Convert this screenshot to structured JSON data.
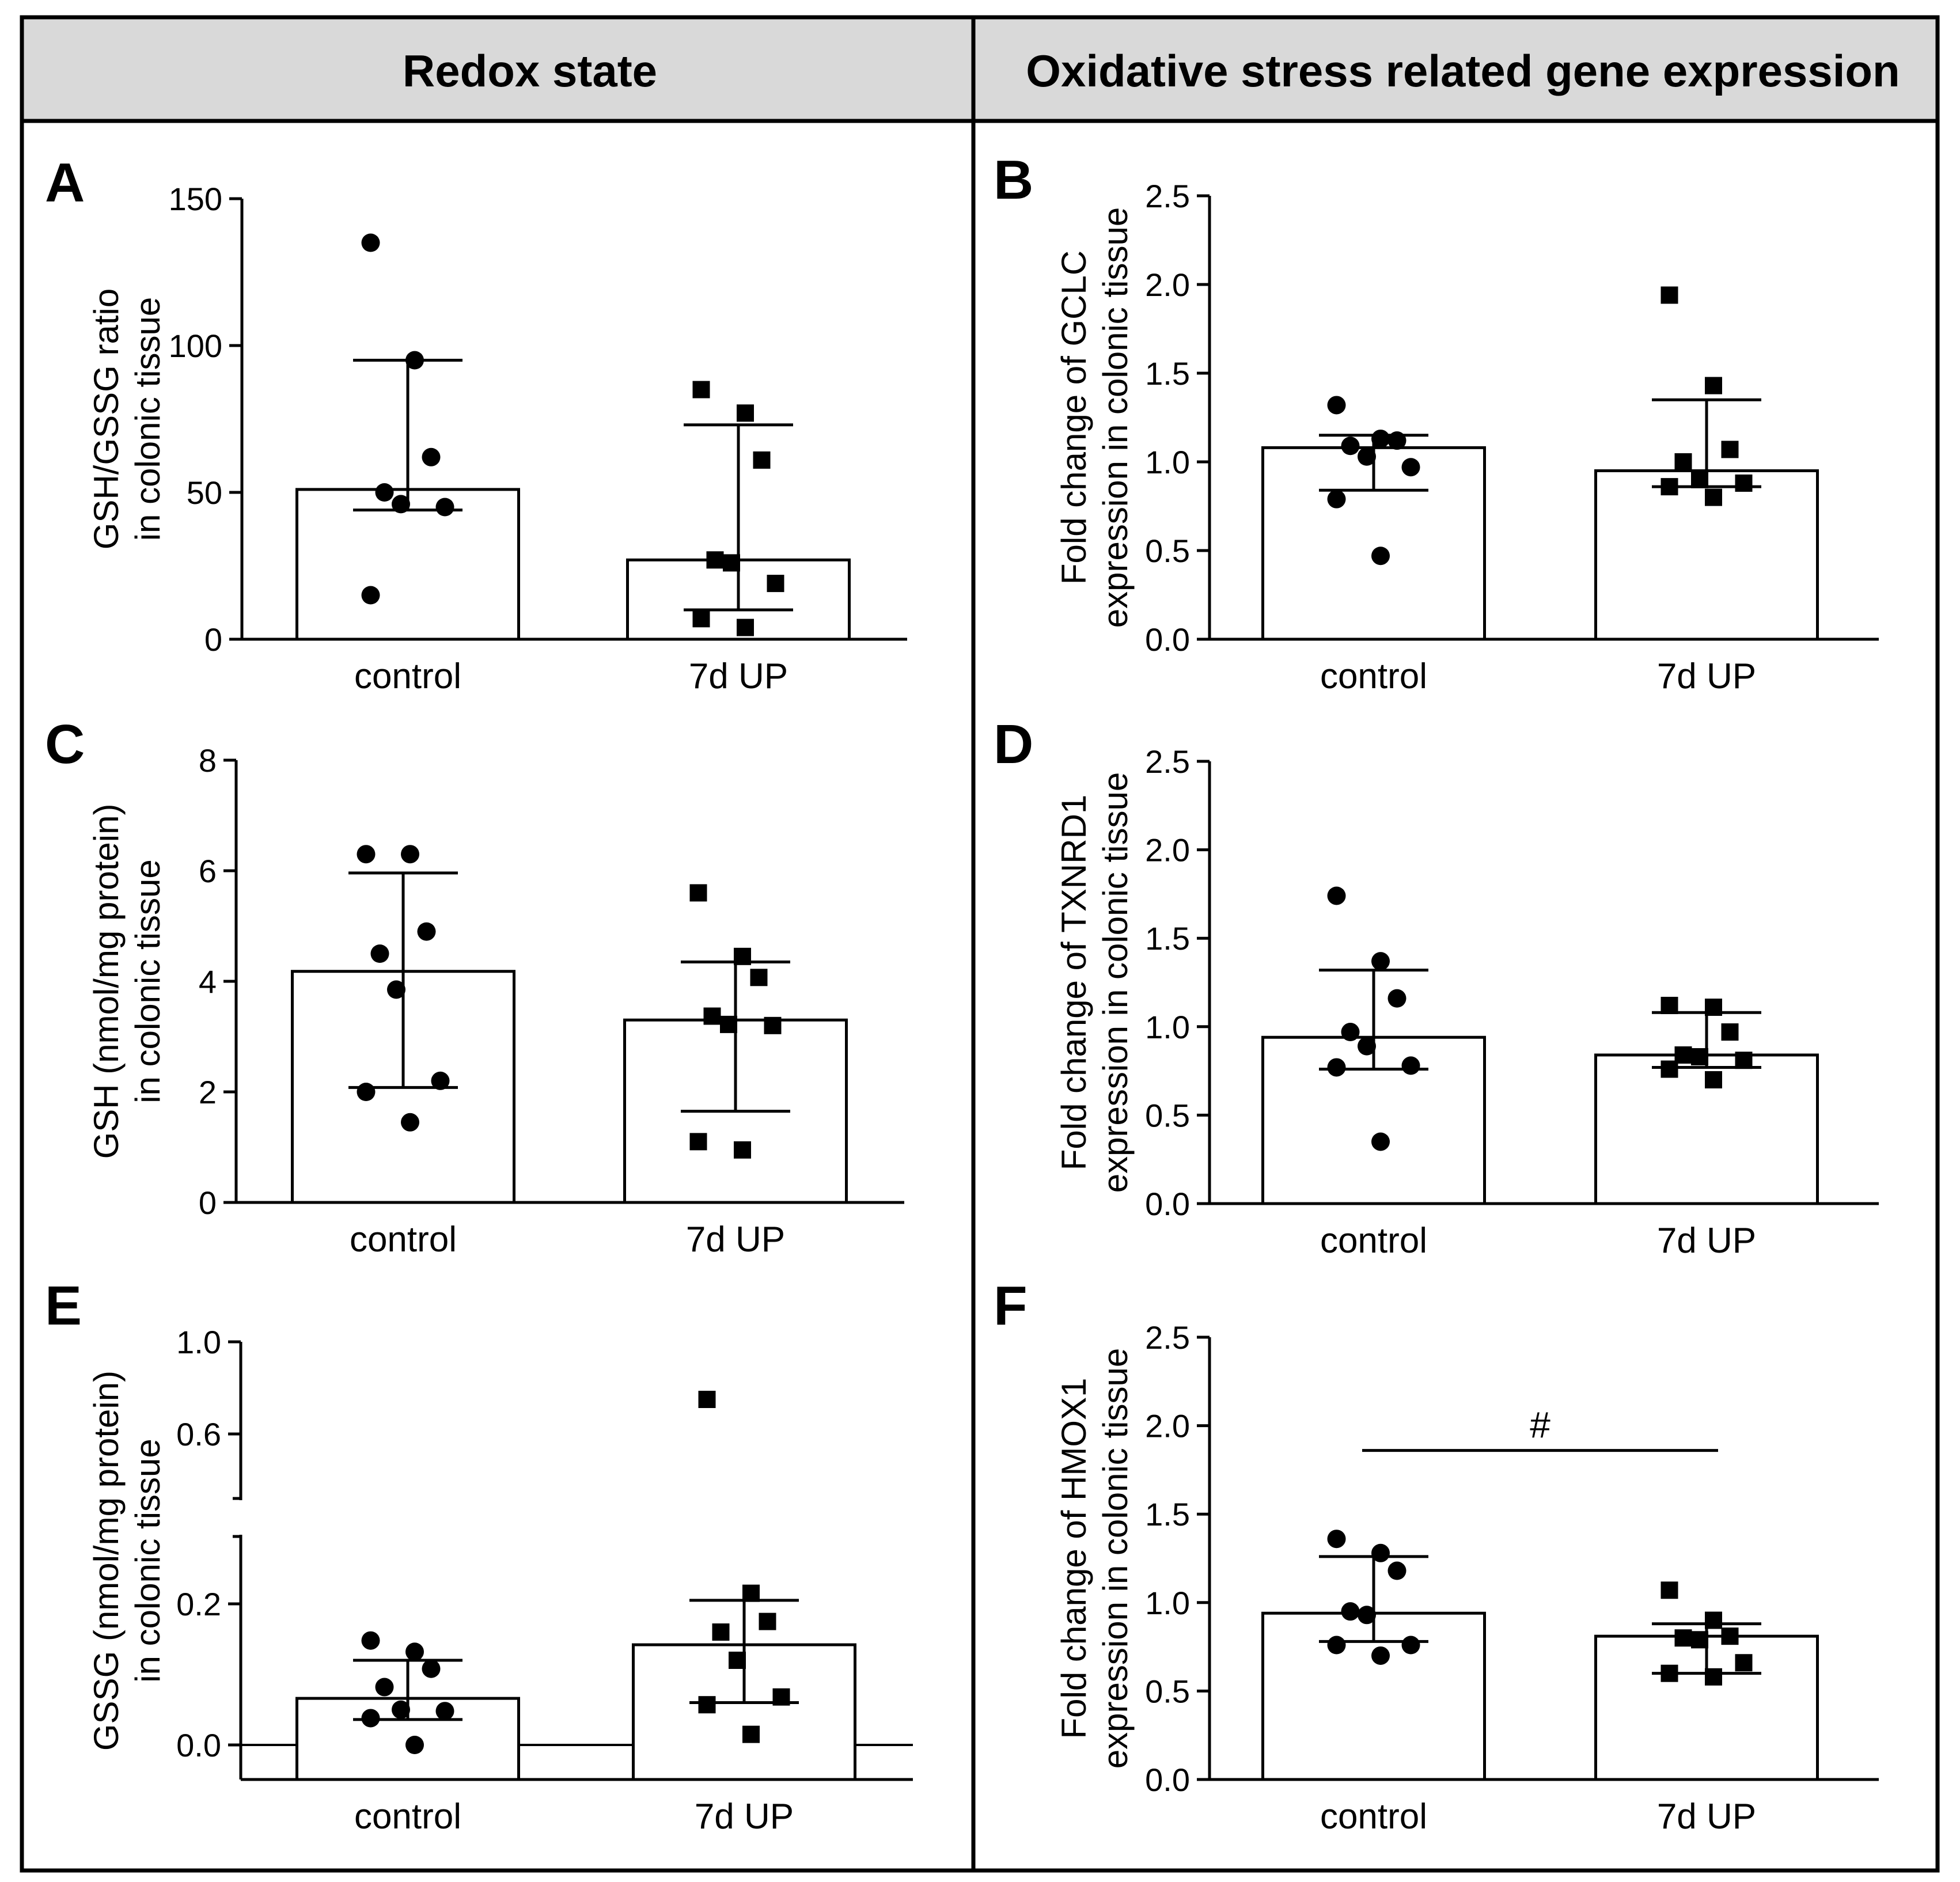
{
  "columns": {
    "left_title": "Redox state",
    "right_title": "Oxidative stress related gene expression"
  },
  "chart_data": [
    {
      "id": "A",
      "type": "bar",
      "letter": "A",
      "categories": [
        "control",
        "7d UP"
      ],
      "values": [
        51,
        27
      ],
      "error_low": [
        44,
        10
      ],
      "error_high": [
        95,
        73
      ],
      "points": [
        [
          135,
          95,
          62,
          50,
          46,
          45,
          15
        ],
        [
          85,
          77,
          61,
          27,
          26,
          19,
          7,
          4
        ]
      ],
      "markers": [
        "circle",
        "square"
      ],
      "ylabel": [
        "GSH/GSSG ratio",
        "in colonic tissue"
      ],
      "ylim": [
        0,
        150
      ],
      "yticks": [
        0,
        50,
        100,
        150
      ],
      "ytick_labels": [
        "0",
        "50",
        "100",
        "150"
      ]
    },
    {
      "id": "B",
      "type": "bar",
      "letter": "B",
      "categories": [
        "control",
        "7d UP"
      ],
      "values": [
        1.08,
        0.95
      ],
      "error_low": [
        0.84,
        0.86
      ],
      "error_high": [
        1.15,
        1.35
      ],
      "points": [
        [
          1.32,
          1.13,
          1.12,
          1.09,
          1.03,
          0.97,
          0.79,
          0.47
        ],
        [
          1.94,
          1.43,
          1.07,
          1.0,
          0.9,
          0.88,
          0.86,
          0.8
        ]
      ],
      "markers": [
        "circle",
        "square"
      ],
      "ylabel": [
        "Fold change of GCLC",
        "expression in colonic tissue"
      ],
      "ylim": [
        0,
        2.5
      ],
      "yticks": [
        0,
        0.5,
        1.0,
        1.5,
        2.0,
        2.5
      ],
      "ytick_labels": [
        "0.0",
        "0.5",
        "1.0",
        "1.5",
        "2.0",
        "2.5"
      ]
    },
    {
      "id": "C",
      "type": "bar",
      "letter": "C",
      "categories": [
        "control",
        "7d UP"
      ],
      "values": [
        4.18,
        3.3
      ],
      "error_low": [
        2.08,
        1.65
      ],
      "error_high": [
        5.96,
        4.35
      ],
      "points": [
        [
          6.3,
          6.3,
          4.9,
          4.5,
          3.85,
          2.2,
          2.0,
          1.45
        ],
        [
          5.6,
          4.45,
          4.07,
          3.37,
          3.22,
          3.2,
          1.1,
          0.95
        ]
      ],
      "markers": [
        "circle",
        "square"
      ],
      "ylabel": [
        "GSH (nmol/mg protein)",
        "in colonic tissue"
      ],
      "ylim": [
        0,
        8
      ],
      "yticks": [
        0,
        2,
        4,
        6,
        8
      ],
      "ytick_labels": [
        "0",
        "2",
        "4",
        "6",
        "8"
      ]
    },
    {
      "id": "D",
      "type": "bar",
      "letter": "D",
      "categories": [
        "control",
        "7d UP"
      ],
      "values": [
        0.94,
        0.84
      ],
      "error_low": [
        0.76,
        0.77
      ],
      "error_high": [
        1.32,
        1.08
      ],
      "points": [
        [
          1.74,
          1.37,
          1.16,
          0.97,
          0.89,
          0.78,
          0.77,
          0.35
        ],
        [
          1.12,
          1.11,
          0.97,
          0.84,
          0.83,
          0.81,
          0.76,
          0.7
        ]
      ],
      "markers": [
        "circle",
        "square"
      ],
      "ylabel": [
        "Fold change of TXNRD1",
        "expression in colonic tissue"
      ],
      "ylim": [
        0,
        2.5
      ],
      "yticks": [
        0,
        0.5,
        1.0,
        1.5,
        2.0,
        2.5
      ],
      "ytick_labels": [
        "0.0",
        "0.5",
        "1.0",
        "1.5",
        "2.0",
        "2.5"
      ]
    },
    {
      "id": "E",
      "type": "bar",
      "letter": "E",
      "broken_axis": true,
      "categories": [
        "control",
        "7d UP"
      ],
      "values": [
        0.066,
        0.142
      ],
      "error_low": [
        0.036,
        0.06
      ],
      "error_high": [
        0.12,
        0.205
      ],
      "points": [
        [
          0.148,
          0.132,
          0.108,
          0.082,
          0.05,
          0.048,
          0.038,
          0.0
        ],
        [
          0.75,
          0.215,
          0.175,
          0.16,
          0.12,
          0.068,
          0.057,
          0.015
        ]
      ],
      "markers": [
        "circle",
        "square"
      ],
      "ylabel": [
        "GSSG (nmol/mg protein)",
        "in colonic tissue"
      ],
      "yticks": [
        0.0,
        0.2,
        0.6,
        1.0
      ],
      "ytick_labels": [
        "0.0",
        "0.2",
        "0.6",
        "1.0"
      ]
    },
    {
      "id": "F",
      "type": "bar",
      "letter": "F",
      "categories": [
        "control",
        "7d UP"
      ],
      "values": [
        0.94,
        0.81
      ],
      "error_low": [
        0.78,
        0.6
      ],
      "error_high": [
        1.26,
        0.88
      ],
      "points": [
        [
          1.36,
          1.28,
          1.18,
          0.95,
          0.93,
          0.76,
          0.76,
          0.7
        ],
        [
          1.07,
          0.9,
          0.81,
          0.8,
          0.79,
          0.66,
          0.6,
          0.58
        ]
      ],
      "markers": [
        "circle",
        "square"
      ],
      "ylabel": [
        "Fold change of HMOX1",
        "expression in colonic tissue"
      ],
      "ylim": [
        0,
        2.5
      ],
      "yticks": [
        0,
        0.5,
        1.0,
        1.5,
        2.0,
        2.5
      ],
      "ytick_labels": [
        "0.0",
        "0.5",
        "1.0",
        "1.5",
        "2.0",
        "2.5"
      ],
      "significance": {
        "label": "#",
        "y": 1.86
      }
    }
  ]
}
